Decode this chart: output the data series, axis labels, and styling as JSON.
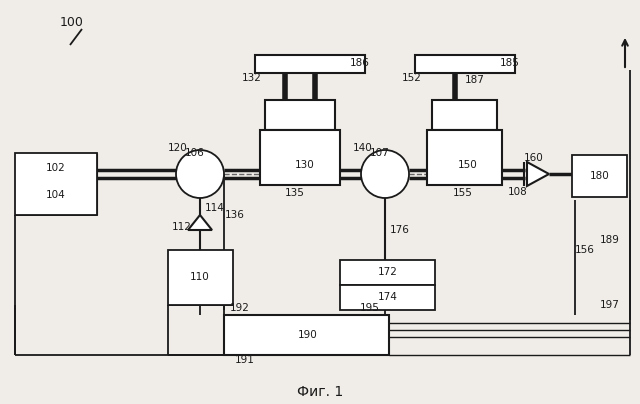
{
  "bg_color": "#f0ede8",
  "line_color": "#1a1a1a",
  "title": "Фиг. 1",
  "title_fontsize": 10,
  "label_fontsize": 7.5
}
